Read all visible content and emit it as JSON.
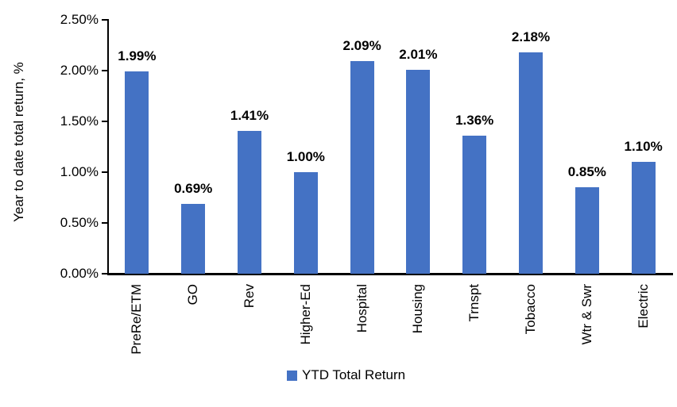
{
  "chart_data": {
    "type": "bar",
    "title": "",
    "categories": [
      "PreRe/ETM",
      "GO",
      "Rev",
      "Higher-Ed",
      "Hospital",
      "Housing",
      "Trnspt",
      "Tobacco",
      "Wtr & Swr",
      "Electric"
    ],
    "values": [
      1.99,
      0.69,
      1.41,
      1.0,
      2.09,
      2.01,
      1.36,
      2.18,
      0.85,
      1.1
    ],
    "data_labels": [
      "1.99%",
      "0.69%",
      "1.41%",
      "1.00%",
      "2.09%",
      "2.01%",
      "1.36%",
      "2.18%",
      "0.85%",
      "1.10%"
    ],
    "xlabel": "",
    "ylabel": "Year to date total return, %",
    "ylim": [
      0,
      2.5
    ],
    "yticks": [
      {
        "value": 0.0,
        "label": "0.00%"
      },
      {
        "value": 0.5,
        "label": "0.50%"
      },
      {
        "value": 1.0,
        "label": "1.00%"
      },
      {
        "value": 1.5,
        "label": "1.50%"
      },
      {
        "value": 2.0,
        "label": "2.00%"
      },
      {
        "value": 2.5,
        "label": "2.50%"
      }
    ],
    "grid": false,
    "legend": {
      "position": "bottom",
      "entries": [
        {
          "label": "YTD Total Return",
          "color": "#4472C4"
        }
      ]
    },
    "colors": {
      "bar": "#4472C4",
      "axis": "#000000",
      "text": "#000000",
      "background": "#FFFFFF"
    }
  }
}
